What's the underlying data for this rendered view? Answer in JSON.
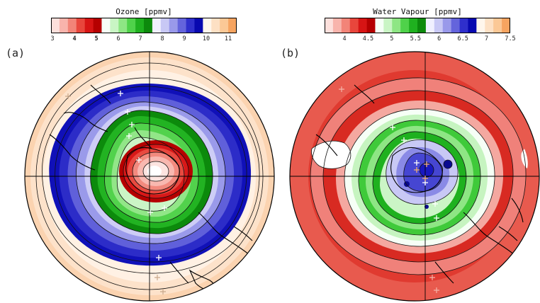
{
  "panels": [
    {
      "label": "(a)",
      "colorbar": {
        "title": "Ozone [ppmv]",
        "ticks": [
          "3",
          "4",
          "5",
          "6",
          "7",
          "8",
          "9",
          "10",
          "11"
        ],
        "colors": [
          "#fde0dc",
          "#f8b4ac",
          "#f28478",
          "#e8463c",
          "#d71414",
          "#b50000",
          "#f6fff6",
          "#c9f5c4",
          "#8ee684",
          "#4fd24a",
          "#1fb11f",
          "#0c8a0c",
          "#f0f0ff",
          "#c8c8f5",
          "#9999ea",
          "#6464dc",
          "#2f2fcc",
          "#0808b0",
          "#fff6ec",
          "#fde0c4",
          "#fbc896",
          "#f6a460"
        ]
      }
    },
    {
      "label": "(b)",
      "colorbar": {
        "title": "Water Vapour [ppmv]",
        "ticks": [
          "4",
          "4.5",
          "5",
          "5.5",
          "6",
          "6.5",
          "7",
          "7.5"
        ],
        "colors": [
          "#fde0dc",
          "#f8b4ac",
          "#f28478",
          "#e8463c",
          "#d71414",
          "#b50000",
          "#f6fff6",
          "#c9f5c4",
          "#8ee684",
          "#4fd24a",
          "#1fb11f",
          "#0c8a0c",
          "#f0f0ff",
          "#c8c8f5",
          "#9999ea",
          "#6464dc",
          "#2f2fcc",
          "#0808b0",
          "#fff6ec",
          "#fde0c4",
          "#fbc896",
          "#f6a460"
        ]
      }
    }
  ]
}
